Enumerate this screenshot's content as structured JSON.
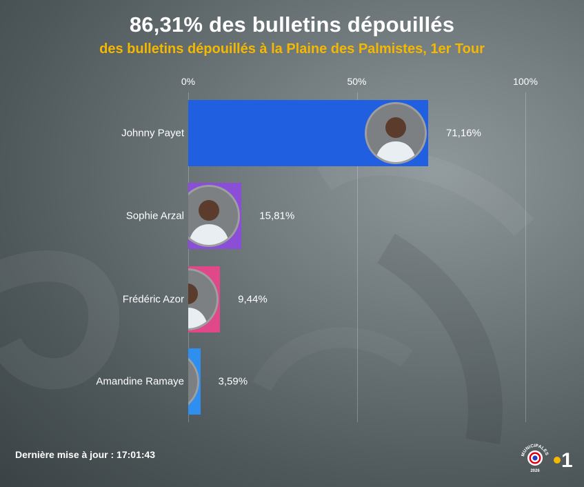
{
  "header": {
    "title": "86,31% des bulletins dépouillés",
    "subtitle": "des bulletins dépouillés à la Plaine des Palmistes, 1er Tour",
    "subtitle_color": "#f5b800"
  },
  "chart_data": {
    "type": "bar",
    "orientation": "horizontal",
    "categories": [
      "Johnny Payet",
      "Sophie Arzal",
      "Frédéric Azor",
      "Amandine Ramaye"
    ],
    "values": [
      71.16,
      15.81,
      9.44,
      3.59
    ],
    "value_labels": [
      "71,16%",
      "15,81%",
      "9,44%",
      "3,59%"
    ],
    "bar_colors": [
      "#1f5fe0",
      "#8a4fd6",
      "#e0488a",
      "#2e8ff0"
    ],
    "axis_ticks": [
      "0%",
      "50%",
      "100%"
    ],
    "tick_values": [
      0,
      50,
      100
    ],
    "xlim": [
      0,
      100
    ],
    "grid": true,
    "legend": "none"
  },
  "footer": {
    "update_label": "Dernière mise à jour : 17:01:43"
  },
  "logo": {
    "ring_text": "MUNICIPALES",
    "year": "2026",
    "channel": "1",
    "accent": "#f5b800"
  }
}
